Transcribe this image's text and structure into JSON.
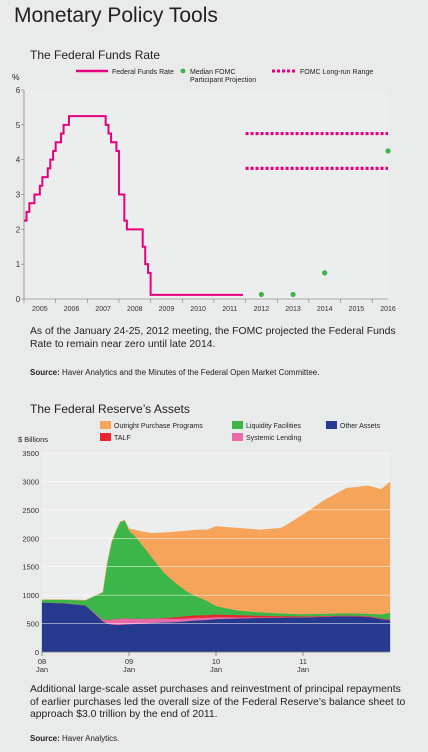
{
  "page": {
    "title": "Monetary Policy Tools"
  },
  "chart1": {
    "subtitle": "The Federal Funds Rate",
    "caption": "As of the January 24-25, 2012 meeting, the FOMC projected the Federal Funds Rate to remain near zero until late 2014.",
    "source_label": "Source:",
    "source_text": " Haver Analytics and the Minutes of the Federal Open Market Committee."
  },
  "chart2": {
    "subtitle": "The Federal Reserve’s Assets",
    "caption": "Additional large-scale asset purchases and reinvestment of principal repayments of earlier purchases led the overall size of the Federal Reserve’s balance sheet to approach $3.0 trillion by the end of 2011.",
    "source_label": "Source:",
    "source_text": " Haver Analytics."
  },
  "chart_data": [
    {
      "type": "line",
      "ylabel": "%",
      "ylim": [
        0,
        6
      ],
      "yticks": [
        "0",
        "1",
        "2",
        "3",
        "4",
        "5",
        "6"
      ],
      "xticks": [
        "2005",
        "2006",
        "2007",
        "2008",
        "2009",
        "2010",
        "2011",
        "2012",
        "2013",
        "2014",
        "2015",
        "2016"
      ],
      "grid": false,
      "legend_position": "top",
      "colors": {
        "rate": "#e6007e",
        "projection": "#3ab54a",
        "longrun": "#e6007e"
      },
      "legend": [
        "Federal Funds Rate",
        "Median FOMC Participant Projection",
        "FOMC Long-run Range"
      ],
      "series": [
        {
          "name": "Federal Funds Rate",
          "x": [
            2005.0,
            2005.08,
            2005.17,
            2005.25,
            2005.33,
            2005.42,
            2005.5,
            2005.58,
            2005.67,
            2005.75,
            2005.83,
            2005.92,
            2006.0,
            2006.08,
            2006.17,
            2006.25,
            2006.33,
            2006.42,
            2006.5,
            2007.5,
            2007.58,
            2007.67,
            2007.75,
            2007.83,
            2007.92,
            2008.0,
            2008.08,
            2008.17,
            2008.25,
            2008.5,
            2008.75,
            2008.83,
            2008.92,
            2009.0,
            2011.92
          ],
          "y": [
            2.25,
            2.5,
            2.75,
            2.75,
            3.0,
            3.0,
            3.25,
            3.5,
            3.5,
            3.75,
            4.0,
            4.25,
            4.5,
            4.5,
            4.75,
            5.0,
            5.0,
            5.25,
            5.25,
            5.25,
            5.0,
            4.75,
            4.5,
            4.5,
            4.25,
            3.0,
            3.0,
            2.25,
            2.0,
            2.0,
            1.5,
            1.0,
            0.75,
            0.12,
            0.12
          ]
        },
        {
          "name": "Median FOMC Participant Projection",
          "x": [
            2012,
            2013,
            2014,
            2016
          ],
          "y": [
            0.13,
            0.13,
            0.75,
            4.25
          ]
        },
        {
          "name": "FOMC Long-run Range",
          "x_range": [
            2012,
            2016
          ],
          "y": [
            3.75,
            4.75
          ]
        }
      ]
    },
    {
      "type": "area",
      "ylabel": "$ Billions",
      "ylim": [
        0,
        3500
      ],
      "yticks": [
        "0",
        "500",
        "1000",
        "1500",
        "2000",
        "2500",
        "3000",
        "3500"
      ],
      "x_year_labels": [
        "08",
        "09",
        "10",
        "11"
      ],
      "x_month_labels": [
        "Jan",
        "Jan",
        "Jan",
        "Jan"
      ],
      "grid": true,
      "legend_position": "top",
      "x": [
        2008.0,
        2008.25,
        2008.5,
        2008.7,
        2008.75,
        2008.8,
        2008.85,
        2008.9,
        2008.95,
        2009.0,
        2009.1,
        2009.25,
        2009.4,
        2009.5,
        2009.65,
        2009.75,
        2009.9,
        2010.0,
        2010.25,
        2010.5,
        2010.75,
        2010.9,
        2011.0,
        2011.25,
        2011.5,
        2011.75,
        2011.9,
        2012.0
      ],
      "series": [
        {
          "name": "Other Assets",
          "color": "#253a8f",
          "values": [
            870,
            860,
            820,
            540,
            500,
            485,
            480,
            480,
            485,
            490,
            495,
            510,
            520,
            525,
            540,
            555,
            565,
            580,
            590,
            600,
            605,
            610,
            610,
            620,
            630,
            620,
            580,
            560
          ]
        },
        {
          "name": "Systemic Lending",
          "color": "#e86aa8",
          "values": [
            0,
            0,
            0,
            30,
            60,
            90,
            100,
            110,
            110,
            100,
            90,
            80,
            70,
            60,
            50,
            45,
            40,
            35,
            20,
            10,
            5,
            5,
            5,
            5,
            5,
            5,
            5,
            5
          ]
        },
        {
          "name": "TALF",
          "color": "#e8262d",
          "values": [
            0,
            0,
            0,
            0,
            0,
            0,
            0,
            0,
            0,
            0,
            0,
            0,
            10,
            25,
            40,
            45,
            45,
            45,
            40,
            30,
            20,
            15,
            12,
            10,
            8,
            8,
            8,
            8
          ]
        },
        {
          "name": "Liquidity Facilities",
          "color": "#3cb549",
          "values": [
            50,
            60,
            90,
            480,
            1000,
            1350,
            1550,
            1700,
            1720,
            1550,
            1400,
            1100,
            800,
            650,
            450,
            350,
            250,
            150,
            80,
            60,
            50,
            40,
            40,
            40,
            40,
            40,
            70,
            120
          ]
        },
        {
          "name": "Outright Purchase Programs",
          "color": "#f5a45a",
          "values": [
            0,
            0,
            0,
            0,
            0,
            0,
            0,
            0,
            5,
            30,
            150,
            400,
            700,
            850,
            1050,
            1150,
            1250,
            1400,
            1450,
            1450,
            1500,
            1650,
            1750,
            2000,
            2200,
            2250,
            2200,
            2300
          ]
        }
      ]
    }
  ]
}
